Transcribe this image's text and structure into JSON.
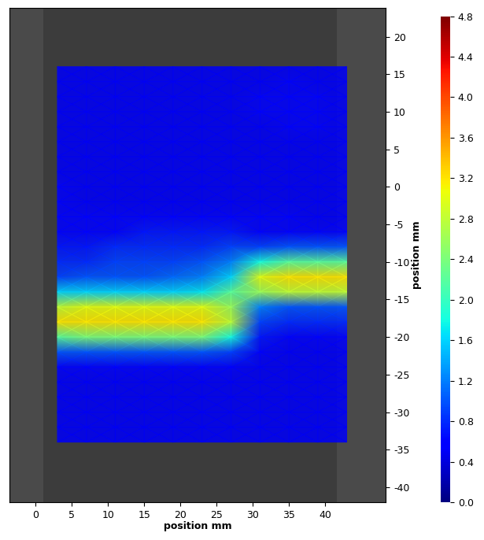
{
  "chart_data": {
    "type": "heatmap",
    "x_label": "position mm",
    "y_label": "position mm",
    "color": "jet",
    "x": [
      3,
      7,
      11,
      15,
      19,
      23,
      27,
      31,
      35,
      39,
      43
    ],
    "y": [
      16,
      14,
      12,
      10,
      8,
      6,
      4,
      2,
      0,
      -2,
      -4,
      -6,
      -8,
      -10,
      -12,
      -14,
      -16,
      -18,
      -20,
      -22,
      -24,
      -26,
      -28,
      -30,
      -32,
      -34
    ],
    "cells": [
      [
        0.5,
        0.5,
        0.5,
        0.5,
        0.5,
        0.5,
        0.5,
        0.5,
        0.5,
        0.5,
        0.5
      ],
      [
        0.5,
        0.5,
        0.5,
        0.5,
        0.5,
        0.5,
        0.5,
        0.5,
        0.6,
        0.5,
        0.5
      ],
      [
        0.5,
        0.5,
        0.5,
        0.5,
        0.5,
        0.5,
        0.5,
        0.6,
        0.6,
        0.6,
        0.5
      ],
      [
        0.5,
        0.5,
        0.5,
        0.5,
        0.5,
        0.5,
        0.5,
        0.6,
        0.6,
        0.6,
        0.5
      ],
      [
        0.5,
        0.5,
        0.5,
        0.5,
        0.5,
        0.5,
        0.5,
        0.5,
        0.6,
        0.6,
        0.5
      ],
      [
        0.5,
        0.5,
        0.5,
        0.5,
        0.5,
        0.5,
        0.5,
        0.5,
        0.5,
        0.5,
        0.5
      ],
      [
        0.5,
        0.5,
        0.5,
        0.5,
        0.5,
        0.5,
        0.5,
        0.5,
        0.5,
        0.5,
        0.5
      ],
      [
        0.5,
        0.5,
        0.5,
        0.5,
        0.5,
        0.5,
        0.5,
        0.5,
        0.5,
        0.5,
        0.5
      ],
      [
        0.6,
        0.5,
        0.5,
        0.5,
        0.5,
        0.5,
        0.5,
        0.5,
        0.5,
        0.5,
        0.5
      ],
      [
        0.6,
        0.5,
        0.5,
        0.5,
        0.5,
        0.5,
        0.5,
        0.5,
        0.5,
        0.5,
        0.5
      ],
      [
        0.6,
        0.6,
        0.6,
        0.6,
        0.6,
        0.6,
        0.6,
        0.6,
        0.6,
        0.5,
        0.5
      ],
      [
        0.6,
        0.6,
        0.6,
        0.7,
        0.7,
        0.7,
        0.7,
        0.6,
        0.6,
        0.6,
        0.6
      ],
      [
        0.7,
        0.7,
        0.8,
        0.8,
        0.8,
        0.8,
        0.9,
        0.9,
        1.0,
        1.0,
        1.0
      ],
      [
        0.8,
        0.8,
        0.9,
        0.9,
        0.9,
        1.0,
        1.2,
        1.8,
        2.2,
        2.2,
        2.2
      ],
      [
        0.9,
        1.0,
        1.0,
        1.0,
        1.1,
        1.2,
        1.6,
        3.0,
        3.2,
        3.2,
        3.2
      ],
      [
        1.6,
        1.6,
        1.6,
        1.6,
        1.6,
        1.7,
        2.2,
        2.6,
        2.8,
        2.8,
        2.8
      ],
      [
        2.8,
        3.0,
        3.0,
        3.0,
        3.0,
        3.0,
        2.6,
        1.2,
        1.0,
        1.0,
        1.0
      ],
      [
        3.2,
        3.2,
        3.2,
        3.2,
        3.2,
        3.2,
        2.8,
        0.9,
        0.8,
        0.8,
        0.8
      ],
      [
        2.2,
        2.4,
        2.4,
        2.4,
        2.4,
        2.4,
        1.8,
        0.7,
        0.6,
        0.6,
        0.6
      ],
      [
        1.0,
        1.0,
        1.0,
        1.0,
        1.0,
        1.0,
        0.9,
        0.6,
        0.5,
        0.5,
        0.5
      ],
      [
        0.6,
        0.6,
        0.6,
        0.6,
        0.6,
        0.6,
        0.6,
        0.5,
        0.5,
        0.5,
        0.5
      ],
      [
        0.5,
        0.5,
        0.5,
        0.5,
        0.5,
        0.5,
        0.5,
        0.5,
        0.5,
        0.5,
        0.5
      ],
      [
        0.5,
        0.5,
        0.5,
        0.5,
        0.5,
        0.5,
        0.5,
        0.5,
        0.5,
        0.5,
        0.5
      ],
      [
        0.5,
        0.5,
        0.5,
        0.5,
        0.5,
        0.5,
        0.5,
        0.5,
        0.5,
        0.5,
        0.5
      ],
      [
        0.5,
        0.5,
        0.5,
        0.5,
        0.5,
        0.5,
        0.5,
        0.5,
        0.5,
        0.5,
        0.5
      ],
      [
        0.5,
        0.5,
        0.5,
        0.5,
        0.5,
        0.5,
        0.5,
        0.5,
        0.5,
        0.5,
        0.5
      ]
    ],
    "xlim": [
      -3.6,
      48.4
    ],
    "ylim": [
      -42,
      23.8
    ],
    "xticks": [
      0,
      5,
      10,
      15,
      20,
      25,
      30,
      35,
      40
    ],
    "yticks": [
      -40,
      -35,
      -30,
      -25,
      -20,
      -15,
      -10,
      -5,
      0,
      5,
      10,
      15,
      20
    ],
    "colorbar_range": [
      0,
      4.8
    ],
    "colorbar_ticks": [
      {
        "value": 0,
        "label": "0.0"
      },
      {
        "value": 0.4,
        "label": "0.4"
      },
      {
        "value": 0.8,
        "label": "0.8"
      },
      {
        "value": 1.2,
        "label": "1.2"
      },
      {
        "value": 1.6,
        "label": "1.6"
      },
      {
        "value": 2,
        "label": "2.0"
      },
      {
        "value": 2.4,
        "label": "2.4"
      },
      {
        "value": 2.8,
        "label": "2.8"
      },
      {
        "value": 3.2,
        "label": "3.2"
      },
      {
        "value": 3.6,
        "label": "3.6"
      },
      {
        "value": 4,
        "label": "4.0"
      },
      {
        "value": 4.4,
        "label": "4.4"
      },
      {
        "value": 4.8,
        "label": "4.8"
      }
    ]
  }
}
